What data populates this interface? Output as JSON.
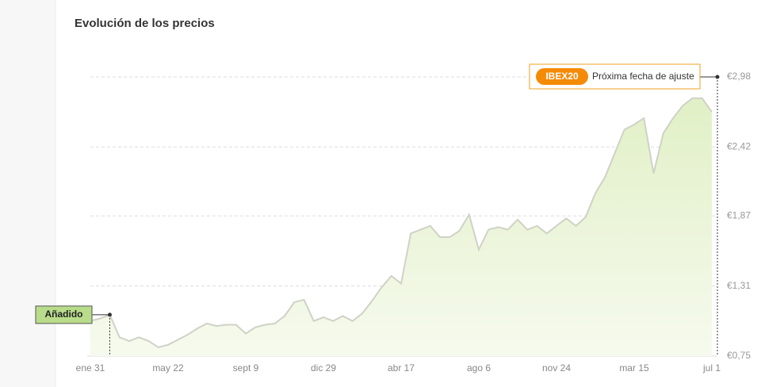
{
  "chart_data": {
    "type": "area",
    "title": "Evolución de los precios",
    "categories": [
      "ene 31",
      null,
      null,
      null,
      null,
      null,
      null,
      null,
      "may 22",
      null,
      null,
      null,
      null,
      null,
      null,
      null,
      "sept 9",
      null,
      null,
      null,
      null,
      null,
      null,
      null,
      "dic 29",
      null,
      null,
      null,
      null,
      null,
      null,
      null,
      "abr 17",
      null,
      null,
      null,
      null,
      null,
      null,
      null,
      "ago 6",
      null,
      null,
      null,
      null,
      null,
      null,
      null,
      "nov 24",
      null,
      null,
      null,
      null,
      null,
      null,
      null,
      "mar 15",
      null,
      null,
      null,
      null,
      null,
      null,
      null,
      "jul 1"
    ],
    "values": [
      1.03,
      1.05,
      1.08,
      0.9,
      0.87,
      0.9,
      0.87,
      0.82,
      0.84,
      0.88,
      0.92,
      0.97,
      1.01,
      0.99,
      1.0,
      1.0,
      0.93,
      0.98,
      1.0,
      1.01,
      1.07,
      1.18,
      1.2,
      1.03,
      1.06,
      1.03,
      1.07,
      1.03,
      1.09,
      1.19,
      1.3,
      1.39,
      1.33,
      1.73,
      1.76,
      1.79,
      1.7,
      1.7,
      1.75,
      1.88,
      1.6,
      1.76,
      1.78,
      1.76,
      1.84,
      1.76,
      1.79,
      1.73,
      1.79,
      1.85,
      1.79,
      1.86,
      2.05,
      2.18,
      2.37,
      2.56,
      2.6,
      2.65,
      2.21,
      2.53,
      2.65,
      2.75,
      2.81,
      2.81,
      2.7
    ],
    "color": "#cfd2c6",
    "fill": "#e4f1cc",
    "ylim": [
      0.75,
      2.98
    ],
    "yticks": [
      {
        "value": 0.75,
        "label": "€0,75"
      },
      {
        "value": 1.31,
        "label": "€1,31"
      },
      {
        "value": 1.87,
        "label": "€1,87"
      },
      {
        "value": 2.42,
        "label": "€2,42"
      },
      {
        "value": 2.98,
        "label": "€2,98"
      }
    ],
    "grid": true,
    "annotations": {
      "added": "Añadido",
      "added_index": 2,
      "badge": "IBEX20",
      "next": "Próxima fecha de ajuste"
    }
  }
}
